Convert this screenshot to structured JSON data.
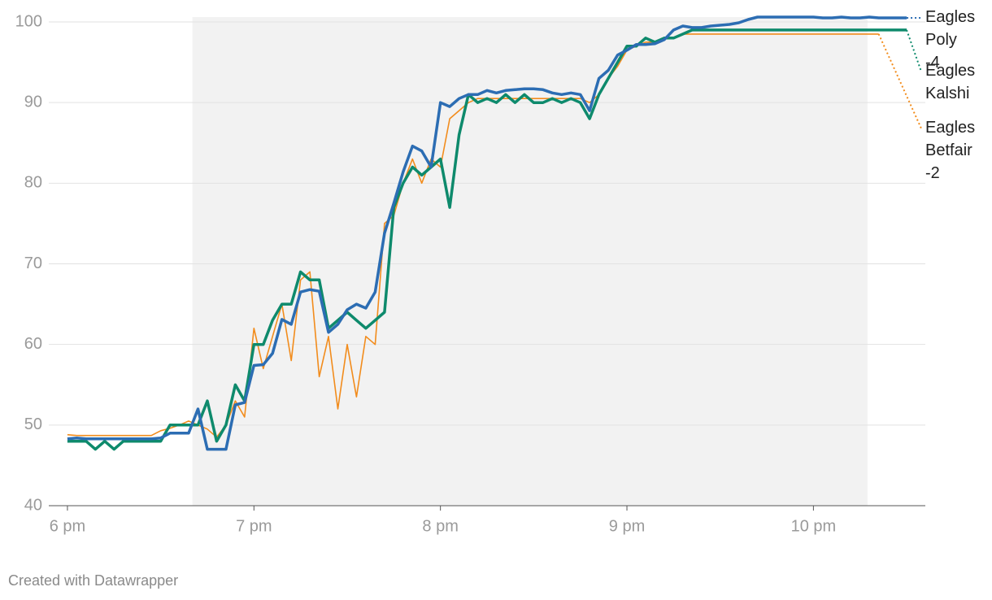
{
  "chart_data": {
    "type": "line",
    "credit": "Created with Datawrapper",
    "highlight": {
      "from": 18.67,
      "to": 22.29
    },
    "xlim": [
      17.9,
      22.6
    ],
    "xticks": [
      {
        "value": 18,
        "label": "6 pm"
      },
      {
        "value": 19,
        "label": "7 pm"
      },
      {
        "value": 20,
        "label": "8 pm"
      },
      {
        "value": 21,
        "label": "9 pm"
      },
      {
        "value": 22,
        "label": "10 pm"
      }
    ],
    "ylim": [
      40,
      100
    ],
    "yticks": [
      40,
      50,
      60,
      70,
      80,
      90,
      100
    ],
    "grid": true,
    "x": [
      18.0,
      18.05,
      18.1,
      18.15,
      18.2,
      18.25,
      18.3,
      18.35,
      18.4,
      18.45,
      18.5,
      18.55,
      18.6,
      18.65,
      18.7,
      18.75,
      18.8,
      18.85,
      18.9,
      18.95,
      19.0,
      19.05,
      19.1,
      19.15,
      19.2,
      19.25,
      19.3,
      19.35,
      19.4,
      19.45,
      19.5,
      19.55,
      19.6,
      19.65,
      19.7,
      19.75,
      19.8,
      19.85,
      19.9,
      19.95,
      20.0,
      20.05,
      20.1,
      20.15,
      20.2,
      20.25,
      20.3,
      20.35,
      20.4,
      20.45,
      20.5,
      20.55,
      20.6,
      20.65,
      20.7,
      20.75,
      20.8,
      20.85,
      20.9,
      20.95,
      21.0,
      21.05,
      21.1,
      21.15,
      21.2,
      21.25,
      21.3,
      21.35,
      21.4,
      21.45,
      21.5,
      21.55,
      21.6,
      21.65,
      21.7,
      21.75,
      21.8,
      21.85,
      21.9,
      21.95,
      22.0,
      22.05,
      22.1,
      22.15,
      22.2,
      22.25,
      22.3,
      22.35,
      22.4,
      22.45,
      22.5
    ],
    "series": [
      {
        "name": "Eagles Poly -4",
        "color": "#2c6db3",
        "values": [
          48.3,
          48.4,
          48.3,
          48.3,
          48.3,
          48.3,
          48.3,
          48.3,
          48.3,
          48.3,
          48.4,
          49,
          49,
          49,
          52,
          47,
          47,
          47,
          52.5,
          52.8,
          57.4,
          57.5,
          58.9,
          63.1,
          62.5,
          66.5,
          66.8,
          66.6,
          61.5,
          62.5,
          64.3,
          65,
          64.5,
          66.5,
          73.8,
          77.5,
          81.4,
          84.6,
          84,
          82,
          90,
          89.5,
          90.5,
          91,
          91,
          91.5,
          91.2,
          91.5,
          91.6,
          91.7,
          91.7,
          91.6,
          91.2,
          91,
          91.2,
          91,
          89,
          93,
          94,
          95.9,
          96.5,
          97.2,
          97.2,
          97.3,
          97.8,
          99,
          99.5,
          99.3,
          99.3,
          99.5,
          99.6,
          99.7,
          99.9,
          100.3,
          100.6,
          100.6,
          100.6,
          100.6,
          100.6,
          100.6,
          100.6,
          100.5,
          100.5,
          100.6,
          100.5,
          100.5,
          100.6,
          100.5,
          100.5,
          100.5,
          100.5
        ]
      },
      {
        "name": "Eagles Kalshi",
        "color": "#0e8a6c",
        "values": [
          48,
          48,
          48,
          47,
          48,
          47,
          48,
          48,
          48,
          48,
          48,
          50,
          50,
          50,
          50,
          53,
          48,
          50,
          55,
          53,
          60,
          60,
          63,
          65,
          65,
          69,
          68,
          68,
          62,
          63,
          64,
          63,
          62,
          63,
          64,
          77,
          80,
          82,
          81,
          82,
          83,
          77,
          86,
          91,
          90,
          90.5,
          90,
          91,
          90,
          91,
          90,
          90,
          90.5,
          90,
          90.5,
          90,
          88,
          91,
          93,
          95,
          97,
          97,
          98,
          97.5,
          98,
          98,
          98.5,
          99,
          99,
          99,
          99,
          99,
          99,
          99,
          99,
          99,
          99,
          99,
          99,
          99,
          99,
          99,
          99,
          99,
          99,
          99,
          99,
          99,
          99,
          99,
          99
        ]
      },
      {
        "name": "Eagles Betfair -2",
        "color": "#f28c1c",
        "values": [
          48.8,
          48.7,
          48.7,
          48.7,
          48.7,
          48.7,
          48.7,
          48.7,
          48.7,
          48.7,
          49.3,
          49.6,
          50,
          50.5,
          50,
          49.5,
          48.5,
          50,
          53,
          51,
          62,
          57,
          61,
          65,
          58,
          68,
          69,
          56,
          61,
          52,
          60,
          53.5,
          61,
          60,
          75,
          76,
          80,
          83,
          80,
          83,
          82,
          88,
          89,
          90,
          90.5,
          90.5,
          90.5,
          90.5,
          90.5,
          90.5,
          90.5,
          90.5,
          90.5,
          90.5,
          90.5,
          90.5,
          90,
          91,
          93,
          94.5,
          96.5,
          97,
          97.5,
          97.5,
          98,
          98,
          98.5,
          98.5,
          98.5,
          98.5,
          98.5,
          98.5,
          98.5,
          98.5,
          98.5,
          98.5,
          98.5,
          98.5,
          98.5,
          98.5,
          98.5,
          98.5,
          98.5,
          98.5,
          98.5,
          98.5,
          98.5,
          98.5,
          null,
          null,
          null
        ]
      }
    ]
  }
}
